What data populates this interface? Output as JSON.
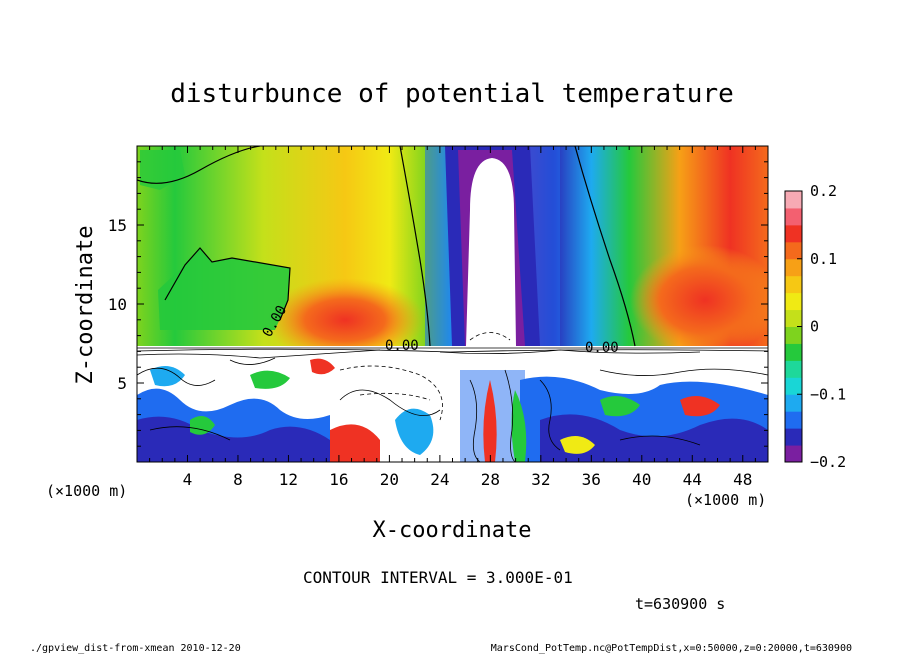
{
  "chart_data": {
    "type": "heatmap",
    "title": "disturbunce of potential temperature",
    "xlabel": "X-coordinate",
    "ylabel": "Z-coordinate",
    "x_unit": "(×1000 m)",
    "y_unit": "(×1000 m)",
    "xlim": [
      0,
      50
    ],
    "ylim": [
      0,
      20
    ],
    "x_ticks": [
      4,
      8,
      12,
      16,
      20,
      24,
      28,
      32,
      36,
      40,
      44,
      48
    ],
    "y_ticks": [
      5,
      10,
      15
    ],
    "colorbar": {
      "range": [
        -0.2,
        0.2
      ],
      "ticks": [
        {
          "value": 0.2,
          "label": "0.2"
        },
        {
          "value": 0.1,
          "label": "0.1"
        },
        {
          "value": 0,
          "label": "0"
        },
        {
          "value": -0.1,
          "label": "−0.1"
        },
        {
          "value": -0.2,
          "label": "−0.2"
        }
      ],
      "colors": [
        "#7a1fa0",
        "#2a2ab8",
        "#1f6cf0",
        "#1eaaf0",
        "#19d6d6",
        "#1ed89a",
        "#25c93c",
        "#7ed31e",
        "#c4e01a",
        "#f0ea14",
        "#f6c814",
        "#f7a016",
        "#f46a1c",
        "#ef3223",
        "#f36070",
        "#f7aab4"
      ]
    },
    "contour_labels": [
      "0.00",
      "0.00",
      "0.00"
    ],
    "contour_interval": "CONTOUR INTERVAL = 3.000E-01",
    "time_label": "t=630900 s"
  },
  "footer": {
    "left": "./gpview_dist-from-xmean  2010-12-20",
    "right": "MarsCond_PotTemp.nc@PotTempDist,x=0:50000,z=0:20000,t=630900"
  }
}
